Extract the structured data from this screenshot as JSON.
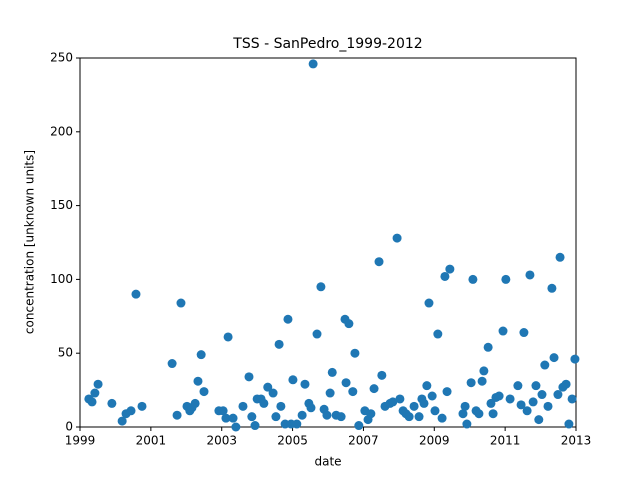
{
  "chart_data": {
    "type": "scatter",
    "title": "TSS - SanPedro_1999-2012",
    "xlabel": "date",
    "ylabel": "concentration [unknown units]",
    "color": "#1f77b4",
    "xlim": [
      1999,
      2013
    ],
    "ylim": [
      0,
      250
    ],
    "xticks": [
      1999,
      2001,
      2003,
      2005,
      2007,
      2009,
      2011,
      2013
    ],
    "yticks": [
      0,
      50,
      100,
      150,
      200,
      250
    ],
    "x": [
      1999.25,
      1999.34,
      1999.42,
      1999.51,
      1999.9,
      2000.19,
      2000.3,
      2000.44,
      2000.58,
      2000.75,
      2001.6,
      2001.74,
      2001.85,
      2002.02,
      2002.1,
      2002.16,
      2002.25,
      2002.33,
      2002.42,
      2002.5,
      2002.92,
      2003.04,
      2003.12,
      2003.18,
      2003.32,
      2003.4,
      2003.6,
      2003.77,
      2003.85,
      2003.94,
      2004.0,
      2004.11,
      2004.19,
      2004.3,
      2004.45,
      2004.53,
      2004.62,
      2004.67,
      2004.79,
      2004.87,
      2004.96,
      2005.01,
      2005.12,
      2005.27,
      2005.35,
      2005.46,
      2005.52,
      2005.58,
      2005.69,
      2005.8,
      2005.89,
      2005.97,
      2006.06,
      2006.12,
      2006.23,
      2006.37,
      2006.48,
      2006.51,
      2006.59,
      2006.7,
      2006.76,
      2006.87,
      2007.04,
      2007.13,
      2007.21,
      2007.3,
      2007.44,
      2007.52,
      2007.61,
      2007.75,
      2007.83,
      2007.95,
      2008.03,
      2008.12,
      2008.2,
      2008.29,
      2008.43,
      2008.57,
      2008.65,
      2008.71,
      2008.79,
      2008.85,
      2008.94,
      2009.02,
      2009.1,
      2009.22,
      2009.3,
      2009.36,
      2009.44,
      2009.81,
      2009.87,
      2009.92,
      2010.04,
      2010.09,
      2010.18,
      2010.26,
      2010.35,
      2010.4,
      2010.52,
      2010.6,
      2010.66,
      2010.74,
      2010.83,
      2010.94,
      2011.02,
      2011.14,
      2011.36,
      2011.45,
      2011.53,
      2011.62,
      2011.7,
      2011.79,
      2011.87,
      2011.95,
      2012.04,
      2012.12,
      2012.21,
      2012.32,
      2012.38,
      2012.49,
      2012.55,
      2012.63,
      2012.72,
      2012.8,
      2012.89,
      2012.97
    ],
    "values": [
      19,
      17,
      23,
      29,
      16,
      4,
      9,
      11,
      90,
      14,
      43,
      8,
      84,
      14,
      11,
      13,
      16,
      31,
      49,
      24,
      11,
      11,
      6,
      61,
      6,
      0,
      14,
      34,
      7,
      1,
      19,
      19,
      16,
      27,
      23,
      7,
      56,
      14,
      2,
      73,
      2,
      32,
      2,
      8,
      29,
      16,
      13,
      246,
      63,
      95,
      12,
      8,
      23,
      37,
      8,
      7,
      73,
      30,
      70,
      24,
      50,
      1,
      11,
      5,
      9,
      26,
      112,
      35,
      14,
      16,
      17,
      128,
      19,
      11,
      9,
      7,
      14,
      7,
      19,
      16,
      28,
      84,
      21,
      11,
      63,
      6,
      102,
      24,
      107,
      9,
      14,
      2,
      30,
      100,
      11,
      9,
      31,
      38,
      54,
      16,
      9,
      20,
      21,
      65,
      100,
      19,
      28,
      15,
      64,
      11,
      103,
      17,
      28,
      5,
      22,
      42,
      14,
      94,
      47,
      22,
      115,
      27,
      29,
      2,
      19,
      46
    ]
  }
}
